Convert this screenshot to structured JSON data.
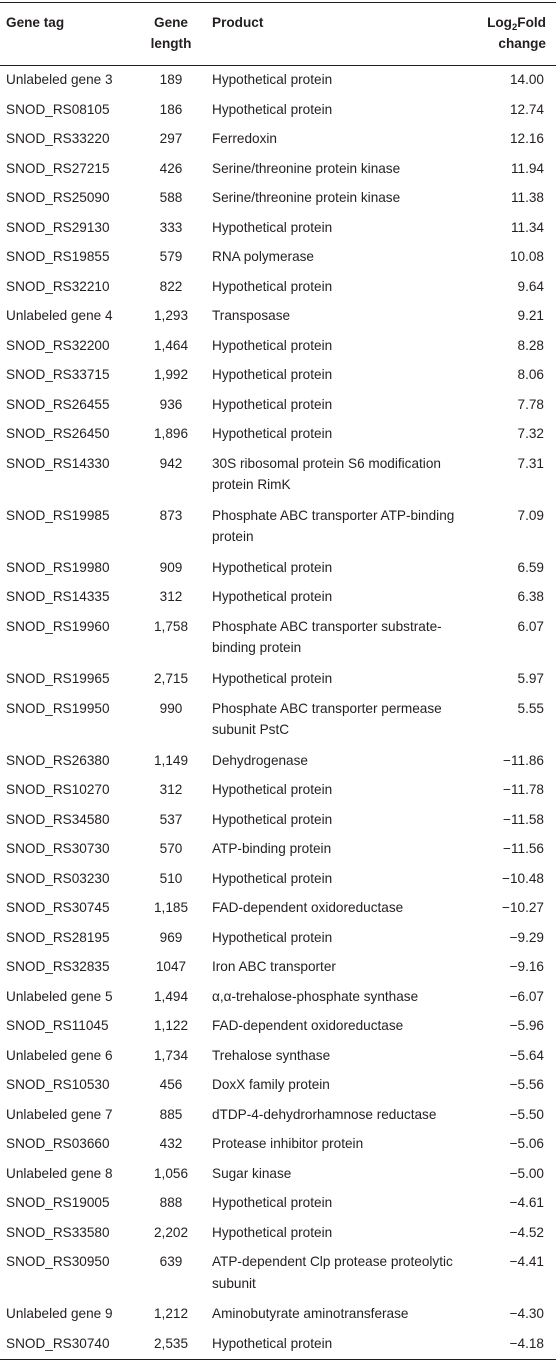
{
  "headers": {
    "gene_tag": "Gene tag",
    "gene_length_1": "Gene",
    "gene_length_2": "length",
    "product": "Product",
    "fold_prefix": "Log",
    "fold_sub": "2",
    "fold_suffix": "Fold",
    "fold_line2": "change"
  },
  "rows": [
    {
      "tag": "Unlabeled gene 3",
      "length": "189",
      "product": "Hypothetical protein",
      "fold": "14.00"
    },
    {
      "tag": "SNOD_RS08105",
      "length": "186",
      "product": "Hypothetical protein",
      "fold": "12.74"
    },
    {
      "tag": "SNOD_RS33220",
      "length": "297",
      "product": "Ferredoxin",
      "fold": "12.16"
    },
    {
      "tag": "SNOD_RS27215",
      "length": "426",
      "product": "Serine/threonine protein kinase",
      "fold": "11.94"
    },
    {
      "tag": "SNOD_RS25090",
      "length": "588",
      "product": "Serine/threonine protein kinase",
      "fold": "11.38"
    },
    {
      "tag": "SNOD_RS29130",
      "length": "333",
      "product": "Hypothetical protein",
      "fold": "11.34"
    },
    {
      "tag": "SNOD_RS19855",
      "length": "579",
      "product": "RNA polymerase",
      "fold": "10.08"
    },
    {
      "tag": "SNOD_RS32210",
      "length": "822",
      "product": "Hypothetical protein",
      "fold": "9.64"
    },
    {
      "tag": "Unlabeled gene 4",
      "length": "1,293",
      "product": "Transposase",
      "fold": "9.21"
    },
    {
      "tag": "SNOD_RS32200",
      "length": "1,464",
      "product": "Hypothetical protein",
      "fold": "8.28"
    },
    {
      "tag": "SNOD_RS33715",
      "length": "1,992",
      "product": "Hypothetical protein",
      "fold": "8.06"
    },
    {
      "tag": "SNOD_RS26455",
      "length": "936",
      "product": "Hypothetical protein",
      "fold": "7.78"
    },
    {
      "tag": "SNOD_RS26450",
      "length": "1,896",
      "product": "Hypothetical protein",
      "fold": "7.32"
    },
    {
      "tag": "SNOD_RS14330",
      "length": "942",
      "product": "30S ribosomal protein S6 modification protein RimK",
      "fold": "7.31"
    },
    {
      "tag": "SNOD_RS19985",
      "length": "873",
      "product": "Phosphate ABC transporter ATP-binding protein",
      "fold": "7.09"
    },
    {
      "tag": "SNOD_RS19980",
      "length": "909",
      "product": "Hypothetical protein",
      "fold": "6.59"
    },
    {
      "tag": "SNOD_RS14335",
      "length": "312",
      "product": "Hypothetical protein",
      "fold": "6.38"
    },
    {
      "tag": "SNOD_RS19960",
      "length": "1,758",
      "product": "Phosphate ABC transporter substrate-binding protein",
      "fold": "6.07"
    },
    {
      "tag": "SNOD_RS19965",
      "length": "2,715",
      "product": "Hypothetical protein",
      "fold": "5.97"
    },
    {
      "tag": "SNOD_RS19950",
      "length": "990",
      "product": "Phosphate ABC transporter permease subunit PstC",
      "fold": "5.55"
    },
    {
      "tag": "SNOD_RS26380",
      "length": "1,149",
      "product": "Dehydrogenase",
      "fold": "−11.86"
    },
    {
      "tag": "SNOD_RS10270",
      "length": "312",
      "product": "Hypothetical protein",
      "fold": "−11.78"
    },
    {
      "tag": "SNOD_RS34580",
      "length": "537",
      "product": "Hypothetical protein",
      "fold": "−11.58"
    },
    {
      "tag": "SNOD_RS30730",
      "length": "570",
      "product": "ATP-binding protein",
      "fold": "−11.56"
    },
    {
      "tag": "SNOD_RS03230",
      "length": "510",
      "product": "Hypothetical protein",
      "fold": "−10.48"
    },
    {
      "tag": "SNOD_RS30745",
      "length": "1,185",
      "product": "FAD-dependent oxidoreductase",
      "fold": "−10.27"
    },
    {
      "tag": "SNOD_RS28195",
      "length": "969",
      "product": "Hypothetical protein",
      "fold": "−9.29"
    },
    {
      "tag": "SNOD_RS32835",
      "length": "1047",
      "product": "Iron ABC transporter",
      "fold": "−9.16"
    },
    {
      "tag": "Unlabeled gene 5",
      "length": "1,494",
      "product": "α,α-trehalose-phosphate synthase",
      "fold": "−6.07"
    },
    {
      "tag": "SNOD_RS11045",
      "length": "1,122",
      "product": "FAD-dependent oxidoreductase",
      "fold": "−5.96"
    },
    {
      "tag": "Unlabeled gene 6",
      "length": "1,734",
      "product": "Trehalose synthase",
      "fold": "−5.64"
    },
    {
      "tag": "SNOD_RS10530",
      "length": "456",
      "product": "DoxX family protein",
      "fold": "−5.56"
    },
    {
      "tag": "Unlabeled gene 7",
      "length": "885",
      "product": "dTDP-4-dehydrorhamnose reductase",
      "fold": "−5.50"
    },
    {
      "tag": "SNOD_RS03660",
      "length": "432",
      "product": "Protease inhibitor protein",
      "fold": "−5.06"
    },
    {
      "tag": "Unlabeled gene 8",
      "length": "1,056",
      "product": "Sugar kinase",
      "fold": "−5.00"
    },
    {
      "tag": "SNOD_RS19005",
      "length": "888",
      "product": "Hypothetical protein",
      "fold": "−4.61"
    },
    {
      "tag": "SNOD_RS33580",
      "length": "2,202",
      "product": "Hypothetical protein",
      "fold": "−4.52"
    },
    {
      "tag": "SNOD_RS30950",
      "length": "639",
      "product": "ATP-dependent Clp protease proteolytic subunit",
      "fold": "−4.41"
    },
    {
      "tag": "Unlabeled gene 9",
      "length": "1,212",
      "product": "Aminobutyrate aminotransferase",
      "fold": "−4.30"
    },
    {
      "tag": "SNOD_RS30740",
      "length": "2,535",
      "product": "Hypothetical protein",
      "fold": "−4.18"
    }
  ]
}
